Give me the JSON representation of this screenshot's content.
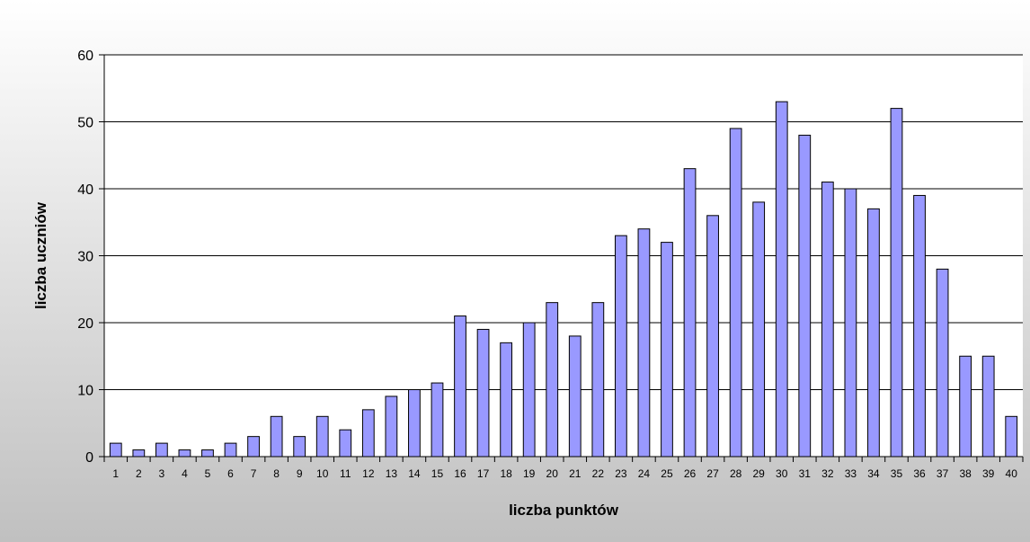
{
  "chart_data": {
    "type": "bar",
    "title": "",
    "xlabel": "liczba punktów",
    "ylabel": "liczba uczniów",
    "categories": [
      "1",
      "2",
      "3",
      "4",
      "5",
      "6",
      "7",
      "8",
      "9",
      "10",
      "11",
      "12",
      "13",
      "14",
      "15",
      "16",
      "17",
      "18",
      "19",
      "20",
      "21",
      "22",
      "23",
      "24",
      "25",
      "26",
      "27",
      "28",
      "29",
      "30",
      "31",
      "32",
      "33",
      "34",
      "35",
      "36",
      "37",
      "38",
      "39",
      "40"
    ],
    "values": [
      2,
      1,
      2,
      1,
      1,
      2,
      3,
      6,
      3,
      6,
      4,
      7,
      9,
      10,
      11,
      21,
      19,
      17,
      20,
      23,
      18,
      23,
      33,
      34,
      32,
      43,
      36,
      49,
      38,
      53,
      48,
      41,
      40,
      37,
      52,
      39,
      28,
      15,
      15,
      6
    ],
    "ylim": [
      0,
      60
    ],
    "yticks": [
      0,
      10,
      20,
      30,
      40,
      50,
      60
    ],
    "grid": true,
    "legend": "none",
    "colors": {
      "bar_fill": "#9999ff",
      "bar_stroke": "#000000",
      "plot_background": "#ffffff",
      "gradient_top": "#ffffff",
      "gradient_bottom": "#c0c0c0",
      "grid": "#000000"
    }
  }
}
